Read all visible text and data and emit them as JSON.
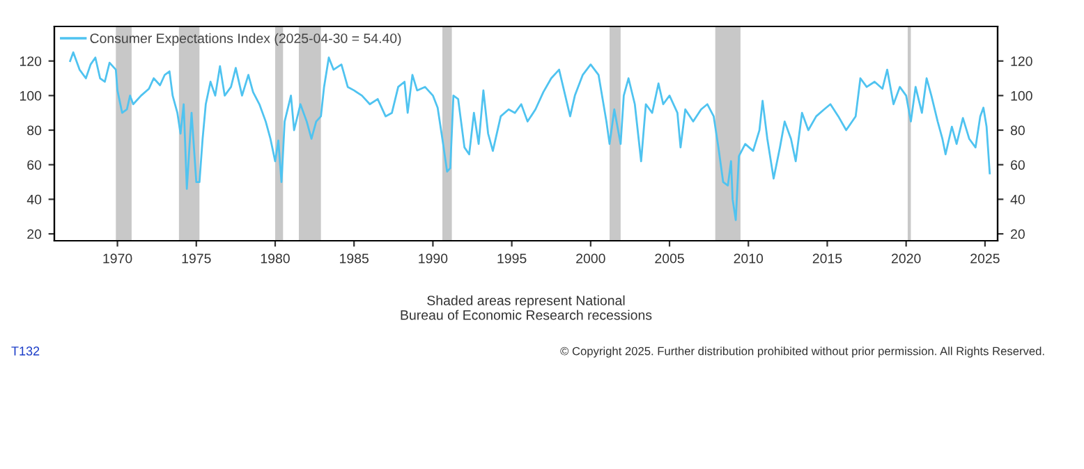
{
  "chart_data": {
    "type": "line",
    "x": [
      1967.0,
      1967.2,
      1967.6,
      1968.0,
      1968.3,
      1968.6,
      1968.9,
      1969.2,
      1969.5,
      1969.9,
      1970.0,
      1970.3,
      1970.6,
      1970.8,
      1971.0,
      1971.5,
      1972.0,
      1972.3,
      1972.7,
      1973.0,
      1973.3,
      1973.5,
      1973.8,
      1974.0,
      1974.2,
      1974.4,
      1974.7,
      1975.0,
      1975.2,
      1975.4,
      1975.6,
      1975.9,
      1976.2,
      1976.5,
      1976.8,
      1977.2,
      1977.5,
      1977.9,
      1978.3,
      1978.6,
      1979.0,
      1979.4,
      1979.7,
      1980.0,
      1980.2,
      1980.4,
      1980.6,
      1981.0,
      1981.2,
      1981.6,
      1982.0,
      1982.3,
      1982.6,
      1982.9,
      1983.1,
      1983.4,
      1983.7,
      1984.2,
      1984.6,
      1985.0,
      1985.5,
      1986.0,
      1986.5,
      1987.0,
      1987.4,
      1987.8,
      1988.2,
      1988.4,
      1988.7,
      1989.0,
      1989.5,
      1990.0,
      1990.3,
      1990.6,
      1990.9,
      1991.1,
      1991.3,
      1991.6,
      1992.0,
      1992.3,
      1992.6,
      1992.9,
      1993.2,
      1993.5,
      1993.8,
      1994.3,
      1994.8,
      1995.2,
      1995.6,
      1996.0,
      1996.5,
      1997.0,
      1997.5,
      1998.0,
      1998.7,
      1999.0,
      1999.5,
      2000.0,
      2000.5,
      2001.0,
      2001.2,
      2001.5,
      2001.9,
      2002.1,
      2002.4,
      2002.8,
      2003.2,
      2003.5,
      2003.9,
      2004.3,
      2004.6,
      2005.0,
      2005.5,
      2005.7,
      2006.0,
      2006.5,
      2007.0,
      2007.4,
      2007.8,
      2008.1,
      2008.4,
      2008.7,
      2008.9,
      2009.0,
      2009.2,
      2009.4,
      2009.8,
      2010.3,
      2010.7,
      2010.9,
      2011.2,
      2011.6,
      2012.0,
      2012.3,
      2012.7,
      2013.0,
      2013.4,
      2013.8,
      2014.3,
      2014.8,
      2015.2,
      2015.7,
      2016.2,
      2016.8,
      2017.1,
      2017.5,
      2018.0,
      2018.5,
      2018.8,
      2019.2,
      2019.6,
      2020.0,
      2020.3,
      2020.6,
      2021.0,
      2021.3,
      2021.6,
      2022.0,
      2022.3,
      2022.5,
      2022.9,
      2023.2,
      2023.6,
      2024.0,
      2024.4,
      2024.7,
      2024.9,
      2025.1,
      2025.3
    ],
    "series": [
      {
        "name": "Consumer Expectations Index (2025-04-30 = 54.40)",
        "color": "#4fc3f0",
        "values": [
          120,
          125,
          115,
          110,
          118,
          122,
          110,
          108,
          119,
          115,
          103,
          90,
          92,
          100,
          95,
          100,
          104,
          110,
          106,
          112,
          114,
          100,
          90,
          78,
          95,
          46,
          90,
          50,
          50,
          75,
          95,
          108,
          100,
          117,
          100,
          105,
          116,
          100,
          112,
          102,
          95,
          85,
          75,
          62,
          74,
          50,
          85,
          100,
          80,
          95,
          85,
          75,
          85,
          88,
          105,
          122,
          115,
          118,
          105,
          103,
          100,
          95,
          98,
          88,
          90,
          105,
          108,
          90,
          112,
          103,
          105,
          100,
          93,
          75,
          56,
          58,
          100,
          98,
          70,
          66,
          90,
          72,
          103,
          78,
          68,
          88,
          92,
          90,
          95,
          85,
          92,
          102,
          110,
          115,
          88,
          100,
          112,
          118,
          112,
          85,
          72,
          92,
          72,
          100,
          110,
          95,
          62,
          95,
          90,
          107,
          95,
          100,
          90,
          70,
          92,
          85,
          92,
          95,
          88,
          70,
          50,
          48,
          62,
          40,
          28,
          65,
          72,
          68,
          80,
          97,
          75,
          52,
          70,
          85,
          75,
          62,
          90,
          80,
          88,
          92,
          95,
          88,
          80,
          88,
          110,
          105,
          108,
          104,
          115,
          95,
          105,
          100,
          85,
          105,
          90,
          110,
          100,
          85,
          75,
          66,
          82,
          72,
          87,
          75,
          70,
          88,
          93,
          82,
          55
        ]
      }
    ],
    "xlim": [
      1966,
      2025.8
    ],
    "xticks": [
      1970,
      1975,
      1980,
      1985,
      1990,
      1995,
      2000,
      2005,
      2010,
      2015,
      2020,
      2025
    ],
    "ylim": [
      16,
      140
    ],
    "yticks": [
      20,
      40,
      60,
      80,
      100,
      120
    ],
    "y2lim": [
      16,
      140
    ],
    "y2ticks": [
      20,
      40,
      60,
      80,
      100,
      120
    ],
    "bands": [
      {
        "axis": "x",
        "from": 1969.9,
        "to": 1970.9,
        "color": "#c8c8c8"
      },
      {
        "axis": "x",
        "from": 1973.9,
        "to": 1975.2,
        "color": "#c8c8c8"
      },
      {
        "axis": "x",
        "from": 1980.0,
        "to": 1980.5,
        "color": "#c8c8c8"
      },
      {
        "axis": "x",
        "from": 1981.5,
        "to": 1982.9,
        "color": "#c8c8c8"
      },
      {
        "axis": "x",
        "from": 1990.6,
        "to": 1991.2,
        "color": "#c8c8c8"
      },
      {
        "axis": "x",
        "from": 2001.2,
        "to": 2001.9,
        "color": "#c8c8c8"
      },
      {
        "axis": "x",
        "from": 2007.9,
        "to": 2009.5,
        "color": "#c8c8c8"
      },
      {
        "axis": "x",
        "from": 2020.1,
        "to": 2020.3,
        "color": "#c8c8c8"
      }
    ],
    "annotations": [
      "Shaded areas represent National\nBureau of Economic Research recessions",
      "T132",
      "© Copyright 2025. Further distribution prohibited without prior permission. All Rights Reserved."
    ],
    "legend": "top left",
    "grid": false,
    "marker": "none",
    "line_style": "solid"
  }
}
